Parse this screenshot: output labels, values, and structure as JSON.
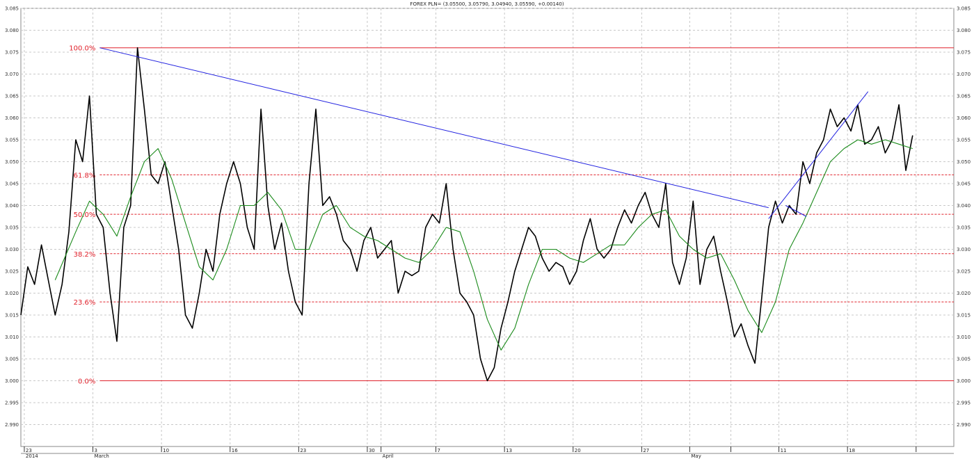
{
  "chart_data": {
    "type": "line",
    "title": "FOREX PLN= (3.05500, 3.05790, 3.04940, 3.05590, +0.00140)",
    "ylim": [
      2.985,
      3.085
    ],
    "y_ticks": [
      "2.990",
      "2.995",
      "3.000",
      "3.005",
      "3.010",
      "3.015",
      "3.020",
      "3.025",
      "3.030",
      "3.035",
      "3.040",
      "3.045",
      "3.050",
      "3.055",
      "3.060",
      "3.065",
      "3.070",
      "3.075",
      "3.080",
      "3.085"
    ],
    "x_labels": [
      {
        "t": 0.5,
        "label": "23",
        "sub": "2014"
      },
      {
        "t": 10.5,
        "label": "3",
        "sub": "March"
      },
      {
        "t": 20.5,
        "label": "10",
        "sub": ""
      },
      {
        "t": 30.5,
        "label": "16",
        "sub": ""
      },
      {
        "t": 40.5,
        "label": "23",
        "sub": ""
      },
      {
        "t": 50.5,
        "label": "30",
        "sub": ""
      },
      {
        "t": 52.5,
        "label": "",
        "sub": "April"
      },
      {
        "t": 60.5,
        "label": "7",
        "sub": ""
      },
      {
        "t": 70.5,
        "label": "13",
        "sub": ""
      },
      {
        "t": 80.5,
        "label": "20",
        "sub": ""
      },
      {
        "t": 90.5,
        "label": "27",
        "sub": ""
      },
      {
        "t": 97.5,
        "label": "",
        "sub": "May"
      },
      {
        "t": 103.5,
        "label": "",
        "sub": ""
      },
      {
        "t": 110.5,
        "label": "11",
        "sub": ""
      },
      {
        "t": 120.5,
        "label": "18",
        "sub": ""
      },
      {
        "t": 130.5,
        "label": "",
        "sub": ""
      }
    ],
    "series": [
      {
        "color": "#000000",
        "points": [
          [
            0,
            3.015
          ],
          [
            1,
            3.026
          ],
          [
            2,
            3.022
          ],
          [
            3,
            3.031
          ],
          [
            4,
            3.023
          ],
          [
            5,
            3.015
          ],
          [
            6,
            3.022
          ],
          [
            7,
            3.034
          ],
          [
            8,
            3.055
          ],
          [
            9,
            3.05
          ],
          [
            10,
            3.065
          ],
          [
            11,
            3.038
          ],
          [
            12,
            3.035
          ],
          [
            13,
            3.02
          ],
          [
            14,
            3.009
          ],
          [
            15,
            3.035
          ],
          [
            16,
            3.04
          ],
          [
            17,
            3.076
          ],
          [
            18,
            3.062
          ],
          [
            19,
            3.047
          ],
          [
            20,
            3.045
          ],
          [
            21,
            3.05
          ],
          [
            22,
            3.04
          ],
          [
            23,
            3.03
          ],
          [
            24,
            3.015
          ],
          [
            25,
            3.012
          ],
          [
            26,
            3.02
          ],
          [
            27,
            3.03
          ],
          [
            28,
            3.025
          ],
          [
            29,
            3.038
          ],
          [
            30,
            3.045
          ],
          [
            31,
            3.05
          ],
          [
            32,
            3.045
          ],
          [
            33,
            3.035
          ],
          [
            34,
            3.03
          ],
          [
            35,
            3.062
          ],
          [
            36,
            3.04
          ],
          [
            37,
            3.03
          ],
          [
            38,
            3.036
          ],
          [
            39,
            3.025
          ],
          [
            40,
            3.018
          ],
          [
            41,
            3.015
          ],
          [
            42,
            3.045
          ],
          [
            43,
            3.062
          ],
          [
            44,
            3.04
          ],
          [
            45,
            3.042
          ],
          [
            46,
            3.038
          ],
          [
            47,
            3.032
          ],
          [
            48,
            3.03
          ],
          [
            49,
            3.025
          ],
          [
            50,
            3.032
          ],
          [
            51,
            3.035
          ],
          [
            52,
            3.028
          ],
          [
            53,
            3.03
          ],
          [
            54,
            3.032
          ],
          [
            55,
            3.02
          ],
          [
            56,
            3.025
          ],
          [
            57,
            3.024
          ],
          [
            58,
            3.025
          ],
          [
            59,
            3.035
          ],
          [
            60,
            3.038
          ],
          [
            61,
            3.036
          ],
          [
            62,
            3.045
          ],
          [
            63,
            3.03
          ],
          [
            64,
            3.02
          ],
          [
            65,
            3.018
          ],
          [
            66,
            3.015
          ],
          [
            67,
            3.005
          ],
          [
            68,
            3.0
          ],
          [
            69,
            3.003
          ],
          [
            70,
            3.012
          ],
          [
            71,
            3.018
          ],
          [
            72,
            3.025
          ],
          [
            73,
            3.03
          ],
          [
            74,
            3.035
          ],
          [
            75,
            3.033
          ],
          [
            76,
            3.028
          ],
          [
            77,
            3.025
          ],
          [
            78,
            3.027
          ],
          [
            79,
            3.026
          ],
          [
            80,
            3.022
          ],
          [
            81,
            3.025
          ],
          [
            82,
            3.032
          ],
          [
            83,
            3.037
          ],
          [
            84,
            3.03
          ],
          [
            85,
            3.028
          ],
          [
            86,
            3.03
          ],
          [
            87,
            3.035
          ],
          [
            88,
            3.039
          ],
          [
            89,
            3.036
          ],
          [
            90,
            3.04
          ],
          [
            91,
            3.043
          ],
          [
            92,
            3.038
          ],
          [
            93,
            3.035
          ],
          [
            94,
            3.045
          ],
          [
            95,
            3.027
          ],
          [
            96,
            3.022
          ],
          [
            97,
            3.028
          ],
          [
            98,
            3.041
          ],
          [
            99,
            3.022
          ],
          [
            100,
            3.03
          ],
          [
            101,
            3.033
          ],
          [
            102,
            3.025
          ],
          [
            103,
            3.018
          ],
          [
            104,
            3.01
          ],
          [
            105,
            3.013
          ],
          [
            106,
            3.008
          ],
          [
            107,
            3.004
          ],
          [
            108,
            3.019
          ],
          [
            109,
            3.035
          ],
          [
            110,
            3.041
          ],
          [
            111,
            3.036
          ],
          [
            112,
            3.04
          ],
          [
            113,
            3.038
          ],
          [
            114,
            3.05
          ],
          [
            115,
            3.045
          ],
          [
            116,
            3.052
          ],
          [
            117,
            3.055
          ],
          [
            118,
            3.062
          ],
          [
            119,
            3.058
          ],
          [
            120,
            3.06
          ],
          [
            121,
            3.057
          ],
          [
            122,
            3.063
          ],
          [
            123,
            3.054
          ],
          [
            124,
            3.055
          ],
          [
            125,
            3.058
          ],
          [
            126,
            3.052
          ],
          [
            127,
            3.055
          ],
          [
            128,
            3.063
          ],
          [
            129,
            3.048
          ],
          [
            130,
            3.056
          ]
        ]
      },
      {
        "color": "#1a8a1a",
        "points": [
          [
            5,
            3.023
          ],
          [
            8,
            3.034
          ],
          [
            10,
            3.041
          ],
          [
            12,
            3.038
          ],
          [
            14,
            3.033
          ],
          [
            16,
            3.042
          ],
          [
            18,
            3.05
          ],
          [
            20,
            3.053
          ],
          [
            22,
            3.046
          ],
          [
            24,
            3.036
          ],
          [
            26,
            3.026
          ],
          [
            28,
            3.023
          ],
          [
            30,
            3.03
          ],
          [
            32,
            3.04
          ],
          [
            34,
            3.04
          ],
          [
            36,
            3.043
          ],
          [
            38,
            3.039
          ],
          [
            40,
            3.03
          ],
          [
            42,
            3.03
          ],
          [
            44,
            3.038
          ],
          [
            46,
            3.04
          ],
          [
            48,
            3.035
          ],
          [
            50,
            3.033
          ],
          [
            52,
            3.032
          ],
          [
            54,
            3.03
          ],
          [
            56,
            3.028
          ],
          [
            58,
            3.027
          ],
          [
            60,
            3.03
          ],
          [
            62,
            3.035
          ],
          [
            64,
            3.034
          ],
          [
            66,
            3.025
          ],
          [
            68,
            3.014
          ],
          [
            70,
            3.007
          ],
          [
            72,
            3.012
          ],
          [
            74,
            3.022
          ],
          [
            76,
            3.03
          ],
          [
            78,
            3.03
          ],
          [
            80,
            3.028
          ],
          [
            82,
            3.027
          ],
          [
            84,
            3.029
          ],
          [
            86,
            3.031
          ],
          [
            88,
            3.031
          ],
          [
            90,
            3.035
          ],
          [
            92,
            3.038
          ],
          [
            94,
            3.039
          ],
          [
            96,
            3.033
          ],
          [
            98,
            3.03
          ],
          [
            100,
            3.028
          ],
          [
            102,
            3.029
          ],
          [
            104,
            3.023
          ],
          [
            106,
            3.016
          ],
          [
            108,
            3.011
          ],
          [
            110,
            3.018
          ],
          [
            112,
            3.03
          ],
          [
            114,
            3.036
          ],
          [
            116,
            3.043
          ],
          [
            118,
            3.05
          ],
          [
            120,
            3.053
          ],
          [
            122,
            3.055
          ],
          [
            124,
            3.054
          ],
          [
            126,
            3.055
          ],
          [
            128,
            3.054
          ],
          [
            130,
            3.053
          ]
        ]
      }
    ],
    "fibonacci": {
      "levels": [
        {
          "label": "100.0%",
          "value": 3.076,
          "style": "solid"
        },
        {
          "label": "61.8%",
          "value": 3.047,
          "style": "dashed"
        },
        {
          "label": "50.0%",
          "value": 3.038,
          "style": "dashed"
        },
        {
          "label": "38.2%",
          "value": 3.029,
          "style": "dashed"
        },
        {
          "label": "23.6%",
          "value": 3.018,
          "style": "dashed"
        },
        {
          "label": "0.0%",
          "value": 3.0,
          "style": "solid"
        }
      ],
      "start_t": 11.5,
      "color": "#e0202a"
    },
    "trendlines": [
      {
        "color": "#2020e0",
        "from": [
          11.5,
          3.076
        ],
        "to": [
          109,
          3.0395
        ]
      },
      {
        "color": "#2020e0",
        "from": [
          109,
          3.037
        ],
        "to": [
          123.5,
          3.066
        ]
      },
      {
        "color": "#2020e0",
        "from": [
          111.5,
          3.04
        ],
        "to": [
          114.5,
          3.0375
        ]
      }
    ],
    "grid": true
  }
}
